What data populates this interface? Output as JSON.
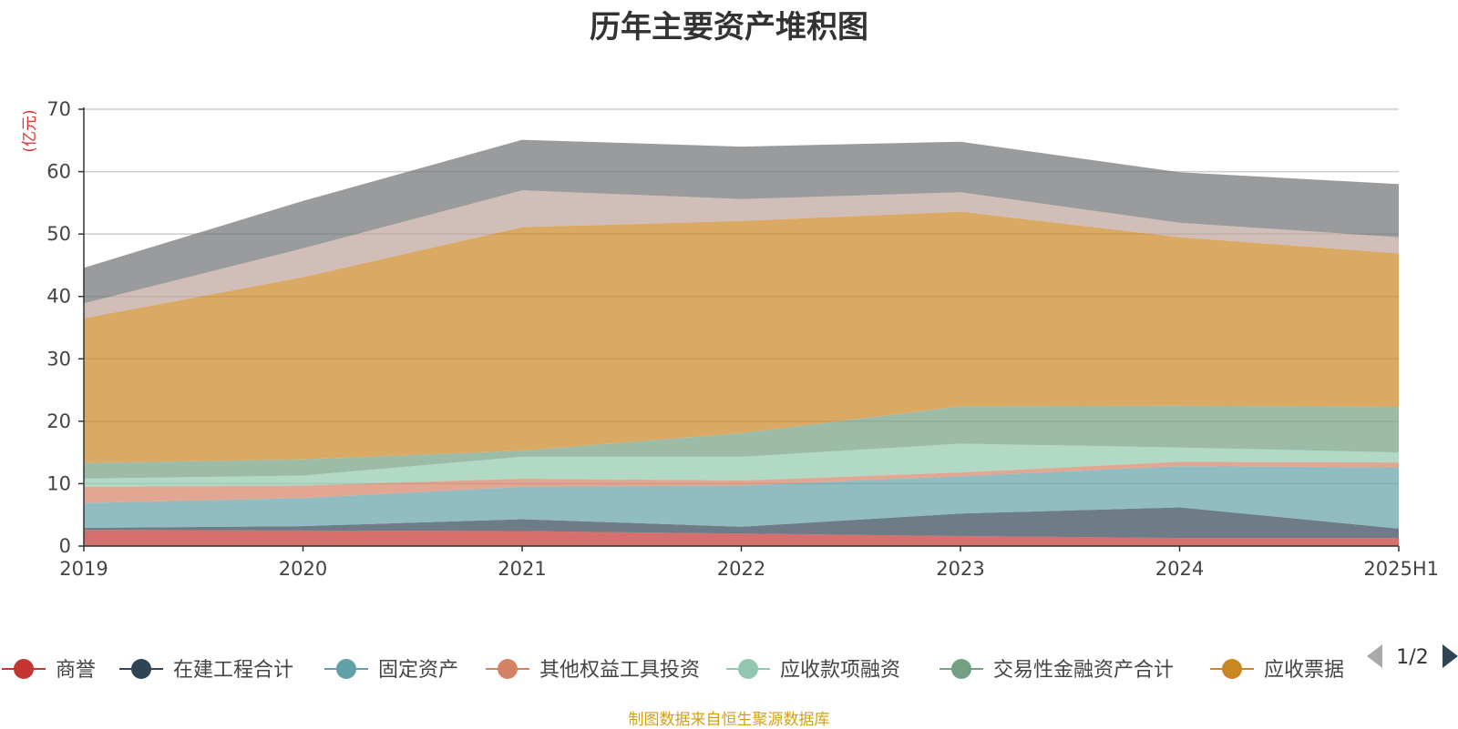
{
  "page_title": "历年主要资产堆积图",
  "footer_source": "制图数据来自恒生聚源数据库",
  "legend_pager": {
    "text": "1/2"
  },
  "chart_data": {
    "type": "area",
    "stacked": true,
    "title": "历年主要资产堆积图",
    "ylabel": "(亿元)",
    "xlabel": "",
    "ylim": [
      0,
      70
    ],
    "yticks": [
      0,
      10,
      20,
      30,
      40,
      50,
      60,
      70
    ],
    "grid": true,
    "legend_position": "bottom",
    "categories": [
      "2019",
      "2020",
      "2021",
      "2022",
      "2023",
      "2024",
      "2025H1"
    ],
    "series": [
      {
        "name": "商誉",
        "color": "#c23531",
        "values": [
          2.6,
          2.5,
          2.4,
          2.0,
          1.6,
          1.3,
          1.3
        ]
      },
      {
        "name": "在建工程合计",
        "color": "#2f4554",
        "values": [
          0.3,
          0.7,
          1.9,
          1.1,
          3.6,
          4.9,
          1.5
        ]
      },
      {
        "name": "固定资产",
        "color": "#61a0a8",
        "values": [
          4.0,
          4.5,
          5.2,
          6.6,
          6.0,
          6.6,
          9.8
        ]
      },
      {
        "name": "其他权益工具投资",
        "color": "#d48265",
        "values": [
          2.6,
          2.0,
          1.3,
          0.8,
          0.6,
          0.7,
          0.8
        ]
      },
      {
        "name": "应收款项融资",
        "color": "#91c7ae",
        "values": [
          1.3,
          1.6,
          3.5,
          3.8,
          4.6,
          2.3,
          1.6
        ]
      },
      {
        "name": "交易性金融资产合计",
        "color": "#749f83",
        "values": [
          2.5,
          2.6,
          1.0,
          3.8,
          6.0,
          6.7,
          7.3
        ]
      },
      {
        "name": "应收票据",
        "color": "#ca8622",
        "values": [
          23.2,
          29.2,
          35.8,
          34.0,
          31.2,
          27.0,
          24.6
        ]
      },
      {
        "name": "",
        "color": "#bda29a",
        "values": [
          2.4,
          4.6,
          5.9,
          3.5,
          3.1,
          2.3,
          2.6
        ]
      },
      {
        "name": "",
        "color": "#6e7074",
        "values": [
          5.7,
          7.6,
          8.1,
          8.4,
          8.1,
          8.1,
          8.5
        ]
      }
    ]
  }
}
